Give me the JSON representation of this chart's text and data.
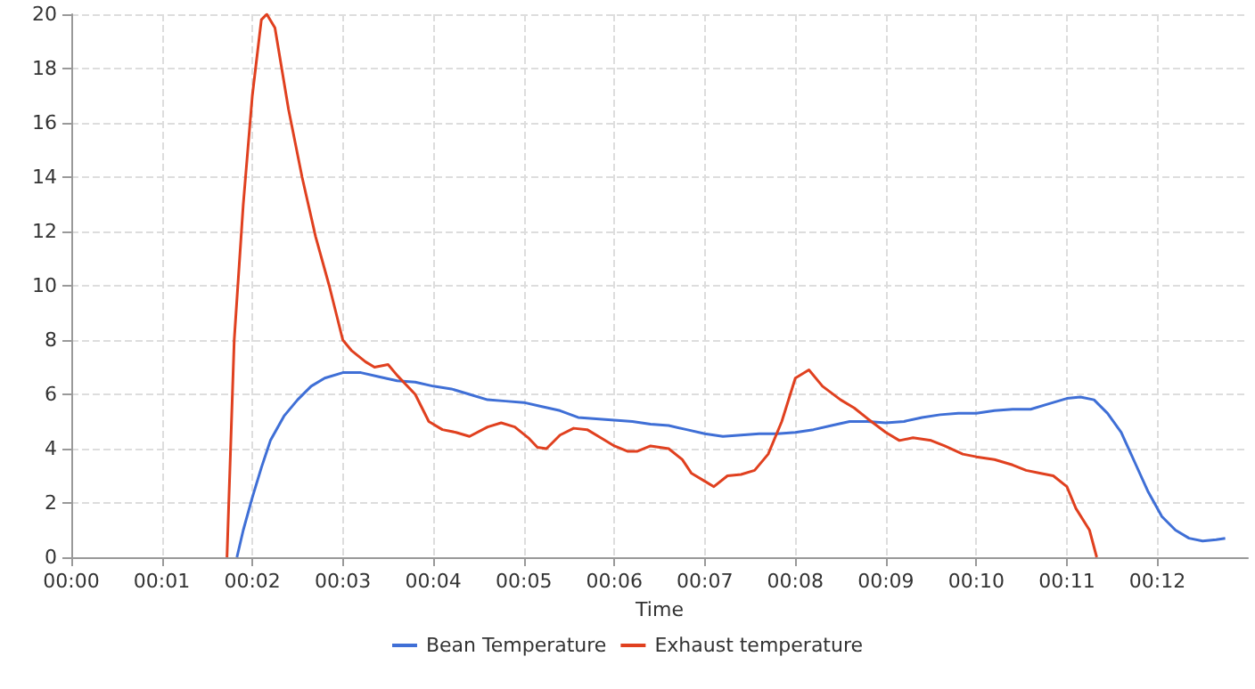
{
  "chart_data": {
    "type": "line",
    "xlabel": "Time",
    "xlim": [
      0,
      13
    ],
    "xticks": [
      {
        "value": 0,
        "label": "00:00"
      },
      {
        "value": 1,
        "label": "00:01"
      },
      {
        "value": 2,
        "label": "00:02"
      },
      {
        "value": 3,
        "label": "00:03"
      },
      {
        "value": 4,
        "label": "00:04"
      },
      {
        "value": 5,
        "label": "00:05"
      },
      {
        "value": 6,
        "label": "00:06"
      },
      {
        "value": 7,
        "label": "00:07"
      },
      {
        "value": 8,
        "label": "00:08"
      },
      {
        "value": 9,
        "label": "00:09"
      },
      {
        "value": 10,
        "label": "00:10"
      },
      {
        "value": 11,
        "label": "00:11"
      },
      {
        "value": 12,
        "label": "00:12"
      }
    ],
    "ylim": [
      0,
      20
    ],
    "yticks": [
      0,
      2,
      4,
      6,
      8,
      10,
      12,
      14,
      16,
      18,
      20
    ],
    "grid": true,
    "legend": "bottom",
    "marker": "none",
    "line_style": "solid",
    "series": [
      {
        "name": "Bean Temperature",
        "color": "#3f6fd6",
        "x": [
          1.83,
          1.9,
          2.0,
          2.1,
          2.2,
          2.35,
          2.5,
          2.65,
          2.8,
          3.0,
          3.2,
          3.4,
          3.6,
          3.8,
          4.0,
          4.2,
          4.4,
          4.6,
          4.8,
          5.0,
          5.2,
          5.4,
          5.6,
          5.8,
          6.0,
          6.2,
          6.4,
          6.6,
          6.8,
          7.0,
          7.2,
          7.4,
          7.6,
          7.8,
          8.0,
          8.2,
          8.4,
          8.6,
          8.8,
          9.0,
          9.2,
          9.4,
          9.6,
          9.8,
          10.0,
          10.2,
          10.4,
          10.6,
          10.8,
          11.0,
          11.15,
          11.3,
          11.45,
          11.6,
          11.75,
          11.9,
          12.05,
          12.2,
          12.35,
          12.5,
          12.65,
          12.75
        ],
        "values": [
          0,
          1,
          2.2,
          3.3,
          4.3,
          5.2,
          5.8,
          6.3,
          6.6,
          6.8,
          6.8,
          6.65,
          6.5,
          6.45,
          6.3,
          6.2,
          6.0,
          5.8,
          5.75,
          5.7,
          5.55,
          5.4,
          5.15,
          5.1,
          5.05,
          5.0,
          4.9,
          4.85,
          4.7,
          4.55,
          4.45,
          4.5,
          4.55,
          4.55,
          4.6,
          4.7,
          4.85,
          5.0,
          5.0,
          4.95,
          5.0,
          5.15,
          5.25,
          5.3,
          5.3,
          5.4,
          5.45,
          5.45,
          5.65,
          5.85,
          5.9,
          5.8,
          5.3,
          4.6,
          3.5,
          2.4,
          1.5,
          1.0,
          0.7,
          0.6,
          0.65,
          0.7
        ]
      },
      {
        "name": "Exhaust temperature",
        "color": "#e0401f",
        "x": [
          1.72,
          1.8,
          1.9,
          2.0,
          2.1,
          2.16,
          2.25,
          2.4,
          2.55,
          2.7,
          2.85,
          3.0,
          3.1,
          3.25,
          3.35,
          3.5,
          3.6,
          3.8,
          3.95,
          4.1,
          4.25,
          4.4,
          4.6,
          4.75,
          4.9,
          5.05,
          5.15,
          5.25,
          5.4,
          5.55,
          5.7,
          5.85,
          6.0,
          6.15,
          6.25,
          6.4,
          6.6,
          6.75,
          6.85,
          7.0,
          7.1,
          7.25,
          7.4,
          7.55,
          7.7,
          7.85,
          8.0,
          8.15,
          8.3,
          8.5,
          8.65,
          8.8,
          9.0,
          9.15,
          9.3,
          9.5,
          9.65,
          9.85,
          10.0,
          10.2,
          10.4,
          10.55,
          10.7,
          10.85,
          11.0,
          11.1,
          11.25,
          11.33
        ],
        "values": [
          0,
          8,
          13,
          17,
          19.8,
          20,
          19.5,
          16.5,
          14,
          11.8,
          10,
          8,
          7.6,
          7.2,
          7,
          7.1,
          6.7,
          6,
          5,
          4.7,
          4.6,
          4.45,
          4.8,
          4.95,
          4.8,
          4.4,
          4.05,
          4.0,
          4.5,
          4.75,
          4.7,
          4.4,
          4.1,
          3.9,
          3.9,
          4.1,
          4.0,
          3.6,
          3.1,
          2.8,
          2.6,
          3.0,
          3.05,
          3.2,
          3.8,
          5.0,
          6.6,
          6.9,
          6.3,
          5.8,
          5.5,
          5.1,
          4.6,
          4.3,
          4.4,
          4.3,
          4.1,
          3.8,
          3.7,
          3.6,
          3.4,
          3.2,
          3.1,
          3.0,
          2.6,
          1.8,
          1.0,
          0
        ]
      }
    ]
  }
}
